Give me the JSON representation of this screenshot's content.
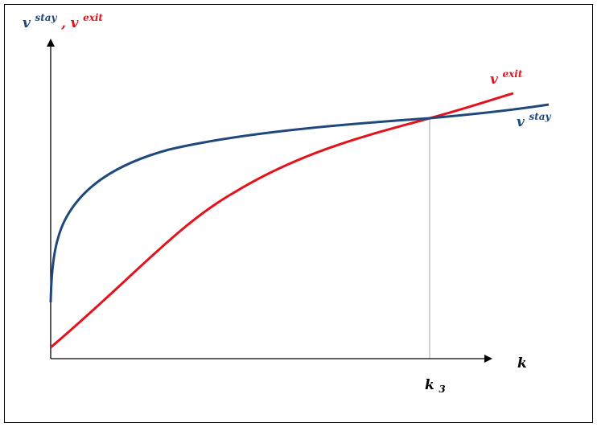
{
  "axes": {
    "y_label": {
      "stay_symbol": "v",
      "stay_superscript": "stay",
      "separator": ",",
      "exit_symbol": "v",
      "exit_superscript": "exit"
    },
    "x_label": "k",
    "marker_label": {
      "symbol": "k",
      "subscript": "3"
    }
  },
  "curves": {
    "stay": {
      "symbol": "v",
      "superscript": "stay",
      "color": "#1f497d"
    },
    "exit": {
      "symbol": "v",
      "superscript": "exit",
      "color": "#e3121b"
    }
  },
  "colors": {
    "axis": "#000000",
    "marker_line": "#a6a6a6",
    "frame": "#000000"
  }
}
